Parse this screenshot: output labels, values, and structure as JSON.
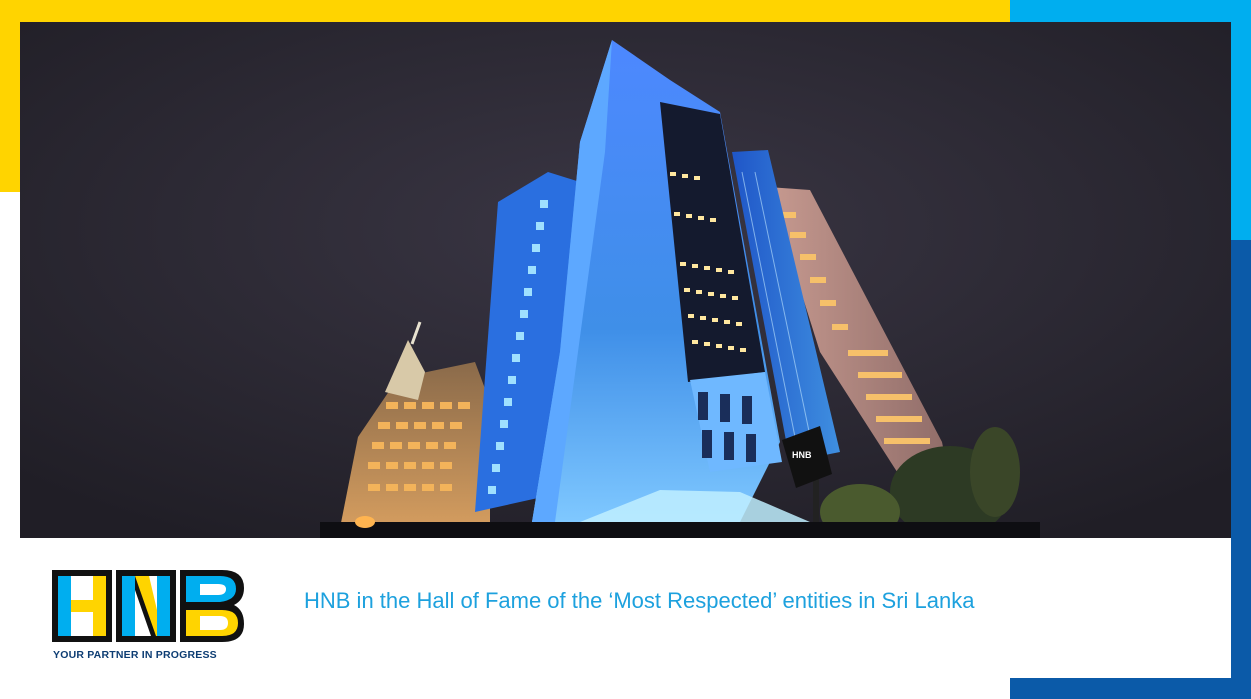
{
  "colors": {
    "brand_yellow": "#ffd400",
    "brand_light_blue": "#00aeef",
    "brand_dark_blue": "#0b5aa8",
    "brand_navy": "#0d3d73",
    "headline_blue": "#1da1de",
    "night_sky": "#2b2833",
    "building_glow": "#5aa6ff"
  },
  "hero": {
    "image_name": "hnb-headquarters-building-night",
    "sign_text": "HNB"
  },
  "logo": {
    "letters": "HNB",
    "tagline": "YOUR PARTNER IN PROGRESS"
  },
  "headline": "HNB in the Hall of Fame of the ‘Most Respected’ entities in Sri Lanka"
}
